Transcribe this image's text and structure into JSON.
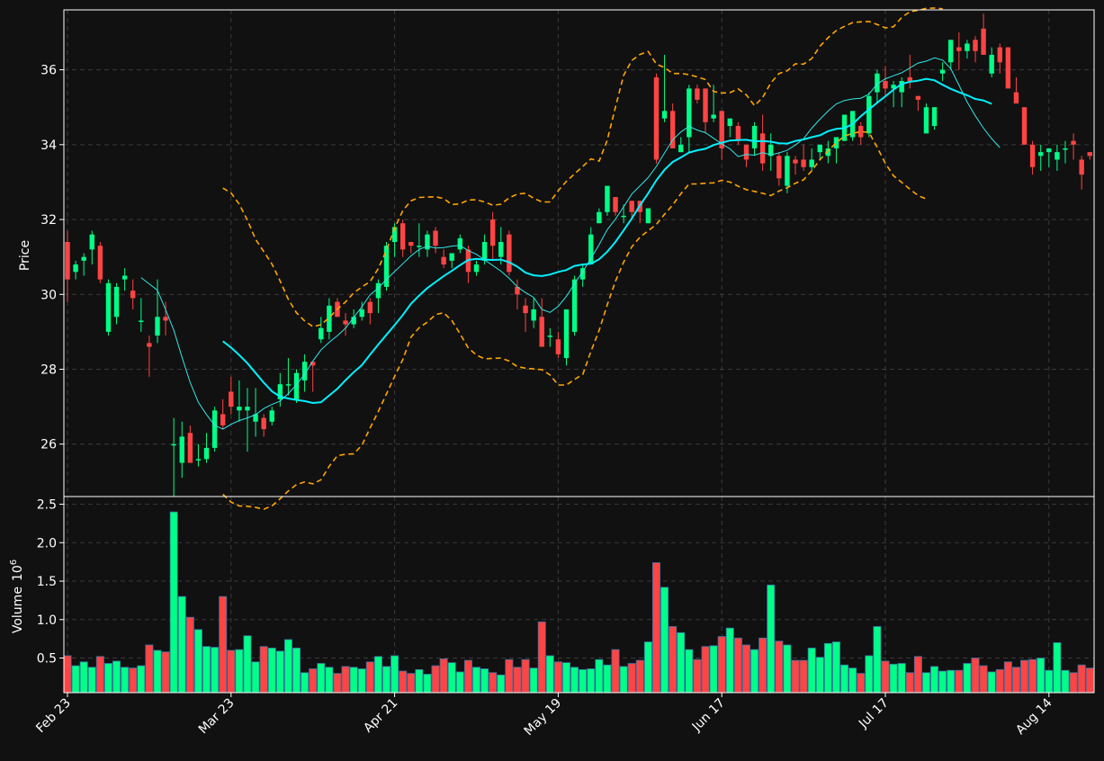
{
  "colors": {
    "background": "#111111",
    "up": "#00ff88",
    "down": "#ff4444",
    "axis": "#ffffff",
    "grid": "#3a3a3a",
    "ma_fast": "#33e6e6",
    "ma_slow": "#00f0ff",
    "bands": "#ffa500"
  },
  "chart_data": {
    "type": "candlestick",
    "x_tick_labels": [
      "Feb 23",
      "Mar 23",
      "Apr 21",
      "May 19",
      "Jun 17",
      "Jul 17",
      "Aug 14"
    ],
    "x_tick_indices": [
      0,
      20,
      40,
      60,
      80,
      100,
      120
    ],
    "price_panel": {
      "ylabel": "Price",
      "ylim": [
        24.6,
        37.6
      ],
      "yticks": [
        26,
        28,
        30,
        32,
        34,
        36
      ],
      "ytick_labels": [
        "26",
        "28",
        "30",
        "32",
        "34",
        "36"
      ],
      "grid": true
    },
    "volume_panel": {
      "ylabel": "Volume",
      "ylabel_multiplier": "10",
      "ylabel_exponent": "6",
      "ylim": [
        0.05,
        2.6
      ],
      "yticks": [
        0.5,
        1.0,
        1.5,
        2.0,
        2.5
      ],
      "ytick_labels": [
        "0.5",
        "1.0",
        "1.5",
        "2.0",
        "2.5"
      ],
      "grid": true
    },
    "candles_ohlc": [
      [
        31.4,
        31.7,
        29.8,
        30.4
      ],
      [
        30.6,
        30.9,
        30.4,
        30.8
      ],
      [
        30.9,
        31.1,
        30.5,
        31.0
      ],
      [
        31.2,
        31.7,
        30.8,
        31.6
      ],
      [
        31.3,
        31.4,
        30.3,
        30.4
      ],
      [
        29.0,
        30.4,
        28.9,
        30.3
      ],
      [
        29.4,
        30.3,
        29.2,
        30.2
      ],
      [
        30.4,
        30.7,
        30.1,
        30.5
      ],
      [
        30.1,
        30.4,
        29.6,
        29.9
      ],
      [
        29.3,
        29.9,
        29.0,
        29.3
      ],
      [
        28.7,
        28.9,
        27.8,
        28.6
      ],
      [
        28.9,
        30.4,
        28.7,
        29.4
      ],
      [
        29.4,
        29.8,
        28.9,
        29.3
      ],
      [
        26.0,
        26.7,
        24.6,
        26.0
      ],
      [
        25.5,
        26.6,
        25.1,
        26.2
      ],
      [
        26.3,
        26.5,
        25.5,
        25.5
      ],
      [
        25.6,
        26.0,
        25.4,
        25.6
      ],
      [
        25.6,
        26.3,
        25.5,
        25.9
      ],
      [
        25.9,
        27.0,
        25.8,
        26.9
      ],
      [
        26.8,
        27.2,
        26.4,
        26.5
      ],
      [
        27.4,
        27.8,
        26.8,
        27.0
      ],
      [
        26.9,
        27.7,
        26.6,
        27.0
      ],
      [
        26.9,
        27.5,
        25.8,
        27.0
      ],
      [
        26.6,
        27.5,
        26.2,
        26.8
      ],
      [
        26.7,
        26.8,
        26.2,
        26.4
      ],
      [
        26.6,
        27.0,
        26.5,
        26.9
      ],
      [
        27.2,
        27.9,
        27.0,
        27.6
      ],
      [
        27.6,
        28.3,
        27.3,
        27.6
      ],
      [
        27.2,
        28.0,
        27.1,
        27.9
      ],
      [
        27.7,
        28.4,
        27.4,
        28.2
      ],
      [
        28.2,
        28.2,
        27.4,
        28.1
      ],
      [
        28.8,
        29.4,
        28.7,
        29.1
      ],
      [
        29.0,
        29.9,
        28.8,
        29.7
      ],
      [
        29.8,
        29.9,
        29.4,
        29.4
      ],
      [
        29.3,
        29.5,
        28.9,
        29.2
      ],
      [
        29.2,
        29.6,
        29.1,
        29.4
      ],
      [
        29.4,
        29.8,
        29.3,
        29.6
      ],
      [
        29.8,
        29.9,
        29.2,
        29.5
      ],
      [
        29.9,
        30.4,
        29.5,
        30.3
      ],
      [
        30.2,
        31.4,
        30.1,
        31.3
      ],
      [
        31.4,
        31.9,
        31.0,
        31.8
      ],
      [
        31.9,
        32.0,
        31.0,
        31.2
      ],
      [
        31.4,
        31.4,
        31.1,
        31.3
      ],
      [
        31.3,
        31.9,
        31.0,
        31.3
      ],
      [
        31.2,
        31.7,
        31.0,
        31.6
      ],
      [
        31.7,
        31.8,
        31.1,
        31.3
      ],
      [
        31.0,
        31.2,
        30.7,
        30.8
      ],
      [
        30.9,
        31.1,
        30.7,
        31.1
      ],
      [
        31.2,
        31.6,
        31.1,
        31.5
      ],
      [
        31.2,
        31.3,
        30.3,
        30.6
      ],
      [
        30.6,
        30.9,
        30.5,
        30.8
      ],
      [
        30.9,
        31.6,
        30.8,
        31.4
      ],
      [
        32.0,
        32.2,
        30.9,
        31.3
      ],
      [
        31.0,
        31.8,
        30.8,
        31.4
      ],
      [
        31.6,
        31.7,
        30.5,
        30.6
      ],
      [
        30.2,
        30.4,
        29.6,
        30.0
      ],
      [
        29.7,
        29.9,
        29.0,
        29.5
      ],
      [
        29.3,
        29.9,
        29.1,
        29.6
      ],
      [
        29.4,
        29.9,
        28.6,
        28.6
      ],
      [
        28.9,
        29.1,
        28.6,
        28.9
      ],
      [
        28.8,
        29.0,
        28.3,
        28.4
      ],
      [
        28.3,
        29.6,
        28.1,
        29.6
      ],
      [
        29.0,
        30.5,
        28.9,
        30.4
      ],
      [
        30.4,
        30.8,
        30.2,
        30.7
      ],
      [
        30.8,
        31.8,
        30.8,
        31.6
      ],
      [
        31.9,
        32.3,
        31.9,
        32.2
      ],
      [
        32.2,
        32.9,
        32.1,
        32.9
      ],
      [
        32.6,
        32.6,
        32.1,
        32.2
      ],
      [
        32.1,
        32.4,
        31.9,
        32.1
      ],
      [
        32.5,
        32.5,
        32.0,
        32.2
      ],
      [
        32.5,
        32.5,
        31.9,
        32.2
      ],
      [
        31.9,
        32.3,
        31.9,
        32.3
      ],
      [
        35.8,
        35.9,
        33.5,
        33.6
      ],
      [
        34.7,
        36.4,
        34.6,
        34.9
      ],
      [
        34.9,
        35.1,
        33.9,
        33.9
      ],
      [
        33.8,
        34.2,
        33.8,
        34.0
      ],
      [
        34.2,
        35.6,
        33.8,
        35.5
      ],
      [
        35.5,
        35.6,
        35.1,
        35.2
      ],
      [
        35.5,
        35.5,
        34.3,
        34.6
      ],
      [
        34.7,
        35.6,
        34.6,
        34.8
      ],
      [
        34.9,
        34.9,
        33.6,
        33.9
      ],
      [
        34.5,
        34.7,
        34.2,
        34.7
      ],
      [
        34.5,
        34.6,
        34.0,
        34.1
      ],
      [
        34.0,
        34.0,
        33.4,
        33.6
      ],
      [
        33.9,
        34.6,
        33.7,
        34.5
      ],
      [
        34.3,
        34.8,
        33.3,
        33.5
      ],
      [
        33.7,
        34.3,
        33.3,
        34.0
      ],
      [
        33.7,
        33.8,
        32.9,
        33.1
      ],
      [
        32.9,
        33.8,
        32.7,
        33.7
      ],
      [
        33.6,
        33.7,
        33.2,
        33.5
      ],
      [
        33.6,
        34.0,
        33.3,
        33.4
      ],
      [
        33.4,
        33.9,
        33.3,
        33.6
      ],
      [
        33.8,
        34.0,
        33.6,
        34.0
      ],
      [
        33.7,
        34.1,
        33.5,
        33.9
      ],
      [
        33.9,
        34.1,
        33.5,
        34.2
      ],
      [
        34.1,
        34.8,
        34.1,
        34.8
      ],
      [
        34.2,
        34.8,
        34.1,
        34.9
      ],
      [
        34.5,
        34.6,
        34.0,
        34.2
      ],
      [
        34.3,
        35.4,
        34.2,
        35.3
      ],
      [
        35.4,
        36.0,
        35.1,
        35.9
      ],
      [
        35.7,
        36.1,
        35.3,
        35.5
      ],
      [
        35.5,
        35.7,
        35.0,
        35.6
      ],
      [
        35.4,
        35.8,
        35.0,
        35.7
      ],
      [
        35.8,
        36.4,
        35.5,
        35.7
      ],
      [
        35.3,
        35.3,
        34.9,
        35.2
      ],
      [
        34.3,
        35.1,
        34.3,
        35.0
      ],
      [
        34.5,
        35.0,
        34.4,
        35.0
      ],
      [
        35.9,
        36.2,
        35.7,
        36.0
      ],
      [
        36.2,
        36.8,
        36.0,
        36.8
      ],
      [
        36.6,
        37.0,
        36.0,
        36.5
      ],
      [
        36.5,
        36.8,
        36.3,
        36.7
      ],
      [
        36.8,
        36.9,
        36.2,
        36.5
      ],
      [
        37.1,
        37.5,
        36.4,
        36.4
      ],
      [
        35.9,
        36.6,
        35.8,
        36.4
      ],
      [
        36.6,
        36.7,
        35.9,
        36.2
      ],
      [
        36.6,
        36.6,
        35.6,
        35.5
      ],
      [
        35.4,
        35.8,
        35.1,
        35.1
      ],
      [
        35.0,
        35.0,
        34.0,
        34.0
      ],
      [
        34.0,
        34.1,
        33.2,
        33.4
      ],
      [
        33.7,
        34.0,
        33.3,
        33.8
      ],
      [
        33.8,
        33.9,
        33.4,
        33.9
      ],
      [
        33.6,
        34.0,
        33.3,
        33.8
      ],
      [
        33.9,
        34.1,
        33.5,
        33.9
      ],
      [
        34.1,
        34.3,
        33.6,
        34.0
      ],
      [
        33.6,
        33.7,
        32.8,
        33.2
      ],
      [
        33.8,
        33.8,
        33.6,
        33.7
      ]
    ],
    "volume_millions": [
      0.53,
      0.4,
      0.45,
      0.38,
      0.52,
      0.43,
      0.46,
      0.38,
      0.37,
      0.4,
      0.67,
      0.6,
      0.58,
      2.4,
      1.3,
      1.03,
      0.87,
      0.65,
      0.64,
      1.3,
      0.6,
      0.61,
      0.79,
      0.45,
      0.65,
      0.63,
      0.59,
      0.74,
      0.63,
      0.31,
      0.36,
      0.43,
      0.38,
      0.3,
      0.39,
      0.38,
      0.36,
      0.45,
      0.52,
      0.39,
      0.53,
      0.33,
      0.3,
      0.35,
      0.29,
      0.4,
      0.49,
      0.44,
      0.32,
      0.47,
      0.38,
      0.36,
      0.31,
      0.28,
      0.48,
      0.38,
      0.48,
      0.37,
      0.97,
      0.53,
      0.45,
      0.44,
      0.38,
      0.35,
      0.36,
      0.48,
      0.41,
      0.61,
      0.39,
      0.43,
      0.47,
      0.71,
      1.74,
      1.42,
      0.91,
      0.83,
      0.61,
      0.48,
      0.65,
      0.66,
      0.78,
      0.89,
      0.76,
      0.67,
      0.61,
      0.76,
      1.45,
      0.72,
      0.67,
      0.47,
      0.47,
      0.63,
      0.51,
      0.69,
      0.71,
      0.41,
      0.37,
      0.3,
      0.53,
      0.91,
      0.46,
      0.42,
      0.43,
      0.31,
      0.52,
      0.31,
      0.39,
      0.33,
      0.34,
      0.34,
      0.43,
      0.5,
      0.4,
      0.32,
      0.35,
      0.45,
      0.38,
      0.47,
      0.48,
      0.5,
      0.34,
      0.7,
      0.34,
      0.31,
      0.41,
      0.37
    ],
    "series": [
      {
        "style": "thin",
        "start_index": 9,
        "values": [
          30.45,
          30.28,
          30.11,
          29.59,
          29.04,
          28.32,
          27.65,
          27.12,
          26.79,
          26.5,
          26.4,
          26.53,
          26.63,
          26.7,
          26.79,
          26.95,
          27.06,
          27.15,
          27.35,
          27.59,
          27.87,
          28.22,
          28.52,
          28.72,
          28.9,
          29.1,
          29.38,
          29.67,
          29.99,
          30.17,
          30.4,
          30.61,
          30.82,
          31.03,
          31.2,
          31.29,
          31.24,
          31.25,
          31.29,
          31.31,
          31.17,
          31.07,
          30.92,
          30.77,
          30.62,
          30.43,
          30.2,
          30.05,
          29.92,
          29.6,
          29.52,
          29.68,
          29.95,
          30.29,
          30.61,
          30.96,
          31.33,
          31.73,
          32.01,
          32.34,
          32.68,
          32.9,
          33.12,
          33.42,
          33.78,
          34.13,
          34.34,
          34.49,
          34.39,
          34.32,
          34.17,
          34.02,
          33.89,
          33.68,
          33.74,
          33.72,
          33.79,
          33.73,
          33.78,
          33.85,
          33.99,
          34.16,
          34.44,
          34.68,
          34.9,
          35.09,
          35.18,
          35.22,
          35.24,
          35.35,
          35.62,
          35.76,
          35.84,
          35.92,
          36.05,
          36.18,
          36.23,
          36.32,
          36.26,
          36.03,
          35.59,
          35.14,
          34.77,
          34.44,
          34.16,
          33.92
        ]
      },
      {
        "style": "thick",
        "start_index": 19,
        "values": [
          28.75,
          28.58,
          28.38,
          28.16,
          27.9,
          27.64,
          27.41,
          27.27,
          27.22,
          27.18,
          27.15,
          27.1,
          27.12,
          27.3,
          27.48,
          27.71,
          27.92,
          28.11,
          28.39,
          28.66,
          28.92,
          29.18,
          29.45,
          29.75,
          29.97,
          30.17,
          30.33,
          30.49,
          30.63,
          30.78,
          30.92,
          30.95,
          30.93,
          30.92,
          30.93,
          30.86,
          30.74,
          30.58,
          30.51,
          30.49,
          30.53,
          30.6,
          30.65,
          30.76,
          30.8,
          30.82,
          30.94,
          31.14,
          31.4,
          31.71,
          32.03,
          32.38,
          32.7,
          33.05,
          33.33,
          33.54,
          33.66,
          33.79,
          33.85,
          33.89,
          33.99,
          34.05,
          34.11,
          34.12,
          34.13,
          34.09,
          34.1,
          34.08,
          34.04,
          34.03,
          34.1,
          34.14,
          34.2,
          34.25,
          34.36,
          34.42,
          34.44,
          34.55,
          34.76,
          34.94,
          35.12,
          35.29,
          35.47,
          35.62,
          35.68,
          35.71,
          35.76,
          35.72,
          35.6,
          35.49,
          35.4,
          35.32,
          35.22,
          35.18,
          35.09
        ]
      },
      {
        "style": "dashed",
        "start_index": 19,
        "values": [
          32.84,
          32.71,
          32.41,
          31.98,
          31.47,
          31.14,
          30.81,
          30.36,
          29.87,
          29.51,
          29.29,
          29.14,
          29.19,
          29.38,
          29.61,
          29.8,
          30.04,
          30.2,
          30.34,
          30.69,
          31.18,
          31.77,
          32.24,
          32.5,
          32.59,
          32.6,
          32.61,
          32.56,
          32.4,
          32.42,
          32.52,
          32.53,
          32.47,
          32.38,
          32.41,
          32.58,
          32.68,
          32.7,
          32.57,
          32.47,
          32.47,
          32.77,
          33.02,
          33.22,
          33.42,
          33.62,
          33.56,
          34.12,
          35.0,
          35.85,
          36.25,
          36.41,
          36.49,
          36.15,
          36.06,
          35.9,
          35.9,
          35.87,
          35.81,
          35.74,
          35.42,
          35.38,
          35.39,
          35.49,
          35.33,
          35.04,
          35.26,
          35.65,
          35.9,
          35.97,
          36.16,
          36.15,
          36.3,
          36.63,
          36.86,
          37.05,
          37.16,
          37.26,
          37.28,
          37.29,
          37.21,
          37.12,
          37.15,
          37.4,
          37.55,
          37.59,
          37.64,
          37.65,
          37.63
        ]
      },
      {
        "style": "dashed",
        "start_index": 19,
        "values": [
          24.66,
          24.45,
          24.35,
          24.34,
          24.31,
          24.26,
          24.35,
          24.54,
          24.75,
          24.92,
          24.99,
          24.94,
          25.05,
          25.41,
          25.69,
          25.73,
          25.74,
          25.97,
          26.43,
          26.87,
          27.34,
          27.81,
          28.26,
          28.86,
          29.11,
          29.26,
          29.46,
          29.51,
          29.3,
          28.95,
          28.57,
          28.38,
          28.28,
          28.29,
          28.3,
          28.22,
          28.07,
          28.03,
          28.01,
          27.99,
          27.85,
          27.58,
          27.58,
          27.73,
          27.86,
          28.48,
          29.04,
          29.72,
          30.35,
          30.86,
          31.27,
          31.53,
          31.7,
          31.87,
          32.14,
          32.39,
          32.69,
          32.95,
          32.95,
          32.97,
          32.98,
          33.05,
          33.0,
          32.89,
          32.8,
          32.75,
          32.7,
          32.64,
          32.76,
          32.85,
          32.97,
          33.06,
          33.3,
          33.6,
          33.84,
          34.05,
          34.23,
          34.3,
          34.35,
          34.33,
          33.93,
          33.5,
          33.17,
          32.99,
          32.81,
          32.64,
          32.55
        ]
      }
    ]
  }
}
